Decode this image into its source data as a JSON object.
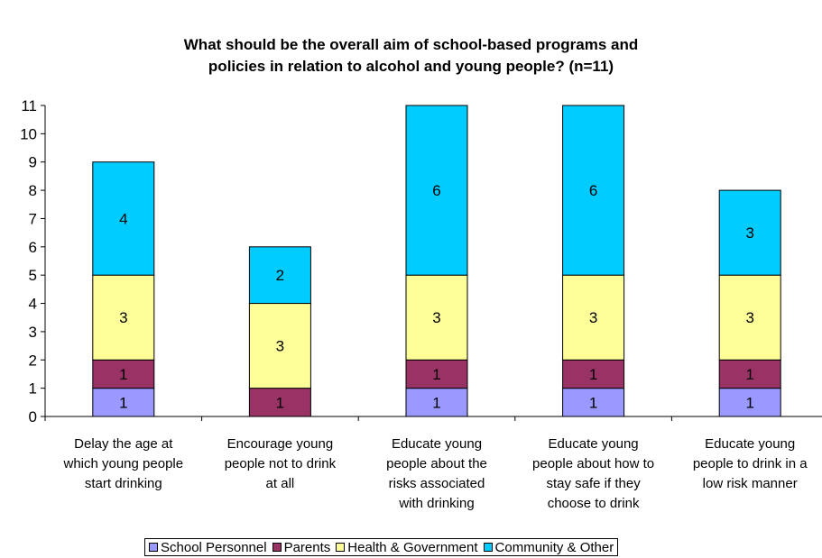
{
  "chart_data": {
    "type": "bar",
    "stacked": true,
    "title_lines": [
      "What should be the overall aim of school-based programs and",
      "policies in relation to alcohol and young people? (n=11)"
    ],
    "categories": [
      [
        "Delay the age at",
        "which young people",
        "start drinking"
      ],
      [
        "Encourage young",
        "people not to drink",
        "at all"
      ],
      [
        "Educate young",
        "people about the",
        "risks associated",
        "with drinking"
      ],
      [
        "Educate young",
        "people about how to",
        "stay safe if they",
        "choose to drink"
      ],
      [
        "Educate young",
        "people to drink in a",
        "low risk manner"
      ]
    ],
    "series": [
      {
        "name": "School Personnel",
        "color": "#9999FF",
        "values": [
          1,
          0,
          1,
          1,
          1
        ]
      },
      {
        "name": "Parents",
        "color": "#993366",
        "values": [
          1,
          1,
          1,
          1,
          1
        ]
      },
      {
        "name": "Health & Government",
        "color": "#FFFF99",
        "values": [
          3,
          3,
          3,
          3,
          3
        ]
      },
      {
        "name": "Community & Other",
        "color": "#00CCFF",
        "values": [
          4,
          2,
          6,
          6,
          3
        ]
      }
    ],
    "ylim": [
      0,
      11
    ],
    "yticks": [
      "0",
      "1",
      "2",
      "3",
      "4",
      "5",
      "6",
      "7",
      "8",
      "9",
      "10",
      "11"
    ],
    "grid": false,
    "legend_position": "bottom"
  }
}
